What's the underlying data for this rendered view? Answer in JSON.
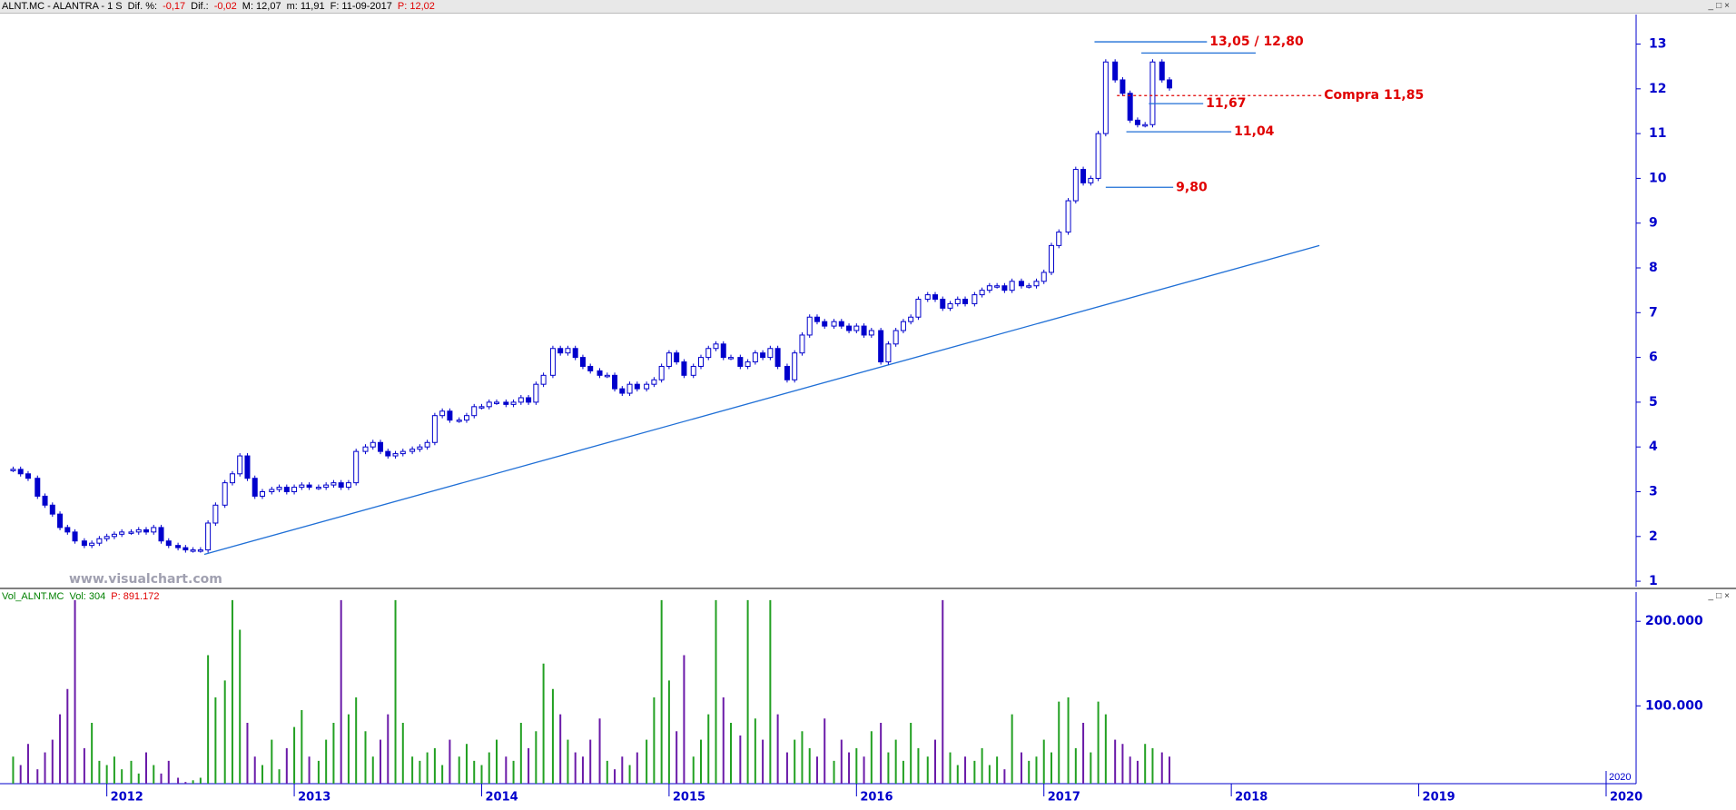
{
  "chart_data": [
    {
      "type": "candlestick",
      "header": [
        {
          "text": "ALNT.MC - ALANTRA -  1 S",
          "color": "#000000"
        },
        {
          "text": "Dif. %:",
          "color": "#000000"
        },
        {
          "text": "-0,17",
          "color": "#e00000"
        },
        {
          "text": "Dif.:",
          "color": "#000000"
        },
        {
          "text": "-0,02",
          "color": "#e00000"
        },
        {
          "text": "M: 12,07",
          "color": "#000000"
        },
        {
          "text": "m: 11,91",
          "color": "#000000"
        },
        {
          "text": "F: 11-09-2017",
          "color": "#000000"
        },
        {
          "text": "P: 12,02",
          "color": "#e00000"
        }
      ],
      "color": "#0000cc",
      "x": [
        2011.5,
        2011.54,
        2011.58,
        2011.63,
        2011.67,
        2011.71,
        2011.75,
        2011.79,
        2011.83,
        2011.88,
        2011.92,
        2011.96,
        2012,
        2012.04,
        2012.08,
        2012.13,
        2012.17,
        2012.21,
        2012.25,
        2012.29,
        2012.33,
        2012.38,
        2012.42,
        2012.46,
        2012.5,
        2012.54,
        2012.58,
        2012.63,
        2012.67,
        2012.71,
        2012.75,
        2012.79,
        2012.83,
        2012.88,
        2012.92,
        2012.96,
        2013,
        2013.04,
        2013.08,
        2013.13,
        2013.17,
        2013.21,
        2013.25,
        2013.29,
        2013.33,
        2013.38,
        2013.42,
        2013.46,
        2013.5,
        2013.54,
        2013.58,
        2013.63,
        2013.67,
        2013.71,
        2013.75,
        2013.79,
        2013.83,
        2013.88,
        2013.92,
        2013.96,
        2014,
        2014.04,
        2014.08,
        2014.13,
        2014.17,
        2014.21,
        2014.25,
        2014.29,
        2014.33,
        2014.38,
        2014.42,
        2014.46,
        2014.5,
        2014.54,
        2014.58,
        2014.63,
        2014.67,
        2014.71,
        2014.75,
        2014.79,
        2014.83,
        2014.88,
        2014.92,
        2014.96,
        2015,
        2015.04,
        2015.08,
        2015.13,
        2015.17,
        2015.21,
        2015.25,
        2015.29,
        2015.33,
        2015.38,
        2015.42,
        2015.46,
        2015.5,
        2015.54,
        2015.58,
        2015.63,
        2015.67,
        2015.71,
        2015.75,
        2015.79,
        2015.83,
        2015.88,
        2015.92,
        2015.96,
        2016,
        2016.04,
        2016.08,
        2016.13,
        2016.17,
        2016.21,
        2016.25,
        2016.29,
        2016.33,
        2016.38,
        2016.42,
        2016.46,
        2016.5,
        2016.54,
        2016.58,
        2016.63,
        2016.67,
        2016.71,
        2016.75,
        2016.79,
        2016.83,
        2016.88,
        2016.92,
        2016.96,
        2017,
        2017.04,
        2017.08,
        2017.13,
        2017.17,
        2017.21,
        2017.25,
        2017.29,
        2017.33,
        2017.38,
        2017.42,
        2017.46,
        2017.5,
        2017.54,
        2017.58,
        2017.63,
        2017.67
      ],
      "values": [
        3.5,
        3.4,
        3.3,
        2.9,
        2.7,
        2.5,
        2.2,
        2.1,
        1.9,
        1.8,
        1.85,
        1.95,
        2.0,
        2.05,
        2.1,
        2.1,
        2.15,
        2.1,
        2.2,
        1.9,
        1.8,
        1.75,
        1.7,
        1.7,
        1.7,
        2.3,
        2.7,
        3.2,
        3.4,
        3.8,
        3.3,
        2.9,
        3.0,
        3.05,
        3.1,
        3.0,
        3.1,
        3.15,
        3.1,
        3.1,
        3.15,
        3.2,
        3.1,
        3.2,
        3.9,
        4.0,
        4.1,
        3.9,
        3.8,
        3.85,
        3.9,
        3.95,
        4.0,
        4.1,
        4.7,
        4.8,
        4.6,
        4.6,
        4.7,
        4.9,
        4.9,
        5.0,
        5.0,
        4.95,
        5.0,
        5.1,
        5.0,
        5.4,
        5.6,
        6.2,
        6.1,
        6.2,
        6.0,
        5.8,
        5.7,
        5.6,
        5.6,
        5.3,
        5.2,
        5.4,
        5.3,
        5.4,
        5.5,
        5.8,
        6.1,
        5.9,
        5.6,
        5.8,
        6.0,
        6.2,
        6.3,
        6.0,
        6.0,
        5.8,
        5.9,
        6.1,
        6.0,
        6.2,
        5.8,
        5.5,
        6.1,
        6.5,
        6.9,
        6.8,
        6.7,
        6.8,
        6.7,
        6.6,
        6.7,
        6.5,
        6.6,
        5.9,
        6.3,
        6.6,
        6.8,
        6.9,
        7.3,
        7.4,
        7.3,
        7.1,
        7.2,
        7.3,
        7.2,
        7.4,
        7.5,
        7.6,
        7.6,
        7.5,
        7.7,
        7.6,
        7.6,
        7.7,
        7.9,
        8.5,
        8.8,
        9.5,
        10.2,
        9.9,
        10.0,
        11.0,
        12.6,
        12.2,
        11.9,
        11.3,
        11.2,
        11.2,
        12.6,
        12.2,
        12.02
      ],
      "ylim": [
        0.88,
        13.66
      ],
      "yticks": [
        1,
        2,
        3,
        4,
        5,
        6,
        7,
        8,
        9,
        10,
        11,
        12,
        13
      ],
      "levels": [
        {
          "value": 13.05,
          "x": [
            2017.27,
            2017.87
          ],
          "color": "#1f6fd6",
          "label": "13,05 / 12,80"
        },
        {
          "value": 12.8,
          "x": [
            2017.52,
            2018.13
          ],
          "color": "#1f6fd6"
        },
        {
          "value": 11.85,
          "x": [
            2017.39,
            2018.48
          ],
          "color": "#e00000",
          "dashed": true,
          "label": "Compra 11,85"
        },
        {
          "value": 11.67,
          "x": [
            2017.56,
            2017.85
          ],
          "color": "#1f6fd6",
          "label": "11,67"
        },
        {
          "value": 11.04,
          "x": [
            2017.44,
            2018.0
          ],
          "color": "#1f6fd6",
          "label": "11,04"
        },
        {
          "value": 9.8,
          "x": [
            2017.33,
            2017.69
          ],
          "color": "#1f6fd6",
          "label": "9,80"
        }
      ],
      "trendline": {
        "x": [
          2012.52,
          2018.47
        ],
        "y": [
          1.6,
          8.5
        ],
        "color": "#1f6fd6"
      },
      "watermark": "www.visualchart.com"
    },
    {
      "type": "bar",
      "header": [
        {
          "text": "Vol_ALNT.MC",
          "color": "#008000"
        },
        {
          "text": "Vol: 304",
          "color": "#008000"
        },
        {
          "text": "P: 891.172",
          "color": "#e00000"
        }
      ],
      "up_color": "#22a022",
      "down_color": "#6a1aa8",
      "values": [
        40000,
        30000,
        55000,
        25000,
        45000,
        60000,
        90000,
        120000,
        225000,
        50000,
        80000,
        35000,
        30000,
        40000,
        25000,
        35000,
        20000,
        45000,
        30000,
        20000,
        35000,
        15000,
        10000,
        12000,
        15000,
        160000,
        110000,
        130000,
        225000,
        190000,
        80000,
        40000,
        30000,
        60000,
        25000,
        50000,
        75000,
        95000,
        40000,
        35000,
        60000,
        80000,
        225000,
        90000,
        110000,
        70000,
        40000,
        60000,
        90000,
        225000,
        80000,
        40000,
        35000,
        45000,
        50000,
        30000,
        60000,
        40000,
        55000,
        35000,
        30000,
        45000,
        60000,
        40000,
        35000,
        80000,
        50000,
        70000,
        150000,
        120000,
        90000,
        60000,
        45000,
        40000,
        60000,
        85000,
        35000,
        25000,
        40000,
        30000,
        45000,
        60000,
        110000,
        225000,
        130000,
        70000,
        160000,
        40000,
        60000,
        90000,
        225000,
        110000,
        80000,
        65000,
        225000,
        85000,
        60000,
        225000,
        90000,
        45000,
        60000,
        70000,
        50000,
        40000,
        85000,
        35000,
        60000,
        45000,
        50000,
        40000,
        70000,
        80000,
        45000,
        60000,
        35000,
        80000,
        50000,
        40000,
        60000,
        225000,
        45000,
        30000,
        40000,
        35000,
        50000,
        30000,
        40000,
        25000,
        90000,
        45000,
        35000,
        40000,
        60000,
        45000,
        105000,
        110000,
        50000,
        80000,
        45000,
        105000,
        90000,
        60000,
        55000,
        40000,
        35000,
        55000,
        50000,
        45000,
        40000
      ],
      "ylim": [
        8000,
        226000
      ],
      "yticks": [
        {
          "value": 100000,
          "label": "100.000"
        },
        {
          "value": 200000,
          "label": "200.000"
        }
      ],
      "xlim": [
        2011.43,
        2020.16
      ],
      "xticks": [
        2012,
        2013,
        2014,
        2015,
        2016,
        2017,
        2018,
        2019,
        2020
      ]
    }
  ]
}
